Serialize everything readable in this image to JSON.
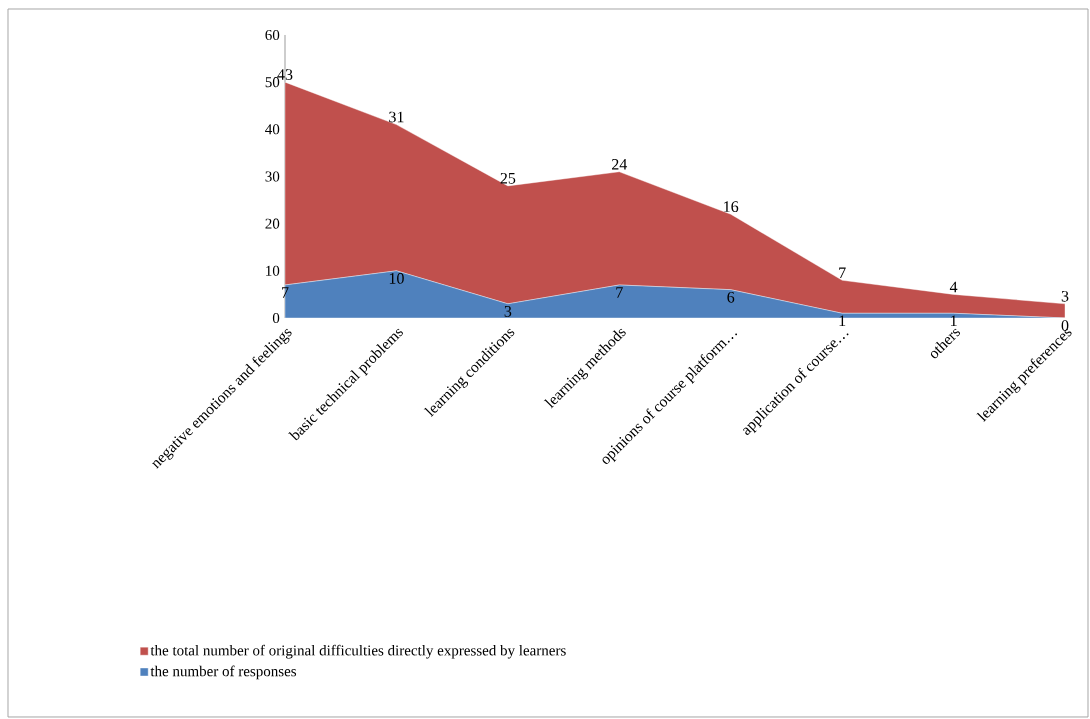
{
  "chart_data": {
    "type": "area",
    "stacked": true,
    "categories": [
      "negative emotions and feelings",
      "basic technical problems",
      "learning conditions",
      "learning methods",
      "opinions of course platform…",
      "application of course…",
      "others",
      "learning preferences"
    ],
    "series": [
      {
        "name": "the number of responses",
        "color": "#4f81bd",
        "values": [
          7,
          10,
          3,
          7,
          6,
          1,
          1,
          0
        ]
      },
      {
        "name": "the total number of original difficulties directly expressed by learners",
        "color": "#c0504d",
        "values": [
          43,
          31,
          25,
          24,
          16,
          7,
          4,
          3
        ]
      }
    ],
    "ylim": [
      0,
      60
    ],
    "yticks": [
      0,
      10,
      20,
      30,
      40,
      50,
      60
    ],
    "data_labels": true,
    "legend": "bottom"
  }
}
